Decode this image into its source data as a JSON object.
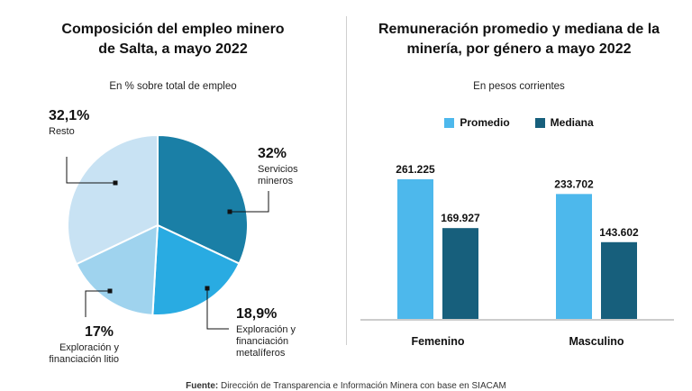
{
  "left": {
    "title_line1": "Composición del empleo minero",
    "title_line2": "de Salta, a mayo 2022",
    "subtitle": "En % sobre total de empleo"
  },
  "right": {
    "title_line1": "Remuneración promedio y mediana de la",
    "title_line2": "minería, por género a mayo 2022",
    "subtitle": "En pesos corrientes"
  },
  "footer": {
    "label": "Fuente:",
    "text": "Dirección de Transparencia e Información Minera con base en SIACAM"
  },
  "chart_data": [
    {
      "type": "pie",
      "title": "Composición del empleo minero de Salta, a mayo 2022",
      "subtitle": "En % sobre total de empleo",
      "slices": [
        {
          "label": "Servicios mineros",
          "label_lines": [
            "Servicios",
            "mineros"
          ],
          "value": 32,
          "display": "32%",
          "color": "#1a7fa6"
        },
        {
          "label": "Exploración y financiación metalíferos",
          "label_lines": [
            "Exploración y",
            "financiación",
            "metalíferos"
          ],
          "value": 18.9,
          "display": "18,9%",
          "color": "#29abe2"
        },
        {
          "label": "Exploración y financiación litio",
          "label_lines": [
            "Exploración y",
            "financiación litio"
          ],
          "value": 17,
          "display": "17%",
          "color": "#9fd3ee"
        },
        {
          "label": "Resto",
          "label_lines": [
            "Resto"
          ],
          "value": 32.1,
          "display": "32,1%",
          "color": "#c8e2f3"
        }
      ]
    },
    {
      "type": "bar",
      "title": "Remuneración promedio y mediana de la minería, por género a mayo 2022",
      "subtitle": "En pesos corrientes",
      "categories": [
        "Femenino",
        "Masculino"
      ],
      "series": [
        {
          "name": "Promedio",
          "color": "#4db8ec",
          "values": [
            261225,
            233702
          ],
          "labels": [
            "261.225",
            "233.702"
          ]
        },
        {
          "name": "Mediana",
          "color": "#175f7c",
          "values": [
            169927,
            143602
          ],
          "labels": [
            "169.927",
            "143.602"
          ]
        }
      ],
      "ylim": [
        0,
        261225
      ],
      "legend": "top"
    }
  ]
}
